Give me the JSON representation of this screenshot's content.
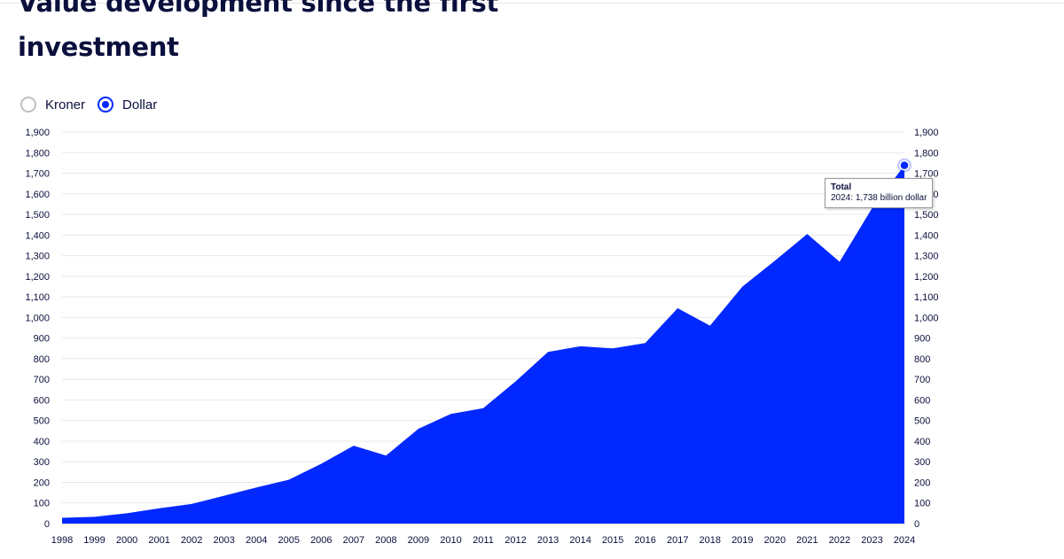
{
  "page": {
    "title": "Value development since the first investment"
  },
  "currency_toggle": {
    "options": [
      {
        "label": "Kroner",
        "selected": false
      },
      {
        "label": "Dollar",
        "selected": true
      }
    ]
  },
  "tooltip": {
    "series": "Total",
    "year": "2024",
    "value_text": "1,738 billion dollar"
  },
  "colors": {
    "area": "#0028ff",
    "title": "#0a0f3c"
  },
  "chart_data": {
    "type": "area",
    "title": "Value development since the first investment",
    "x": [
      1998,
      1999,
      2000,
      2001,
      2002,
      2003,
      2004,
      2005,
      2006,
      2007,
      2008,
      2009,
      2010,
      2011,
      2012,
      2013,
      2014,
      2015,
      2016,
      2017,
      2018,
      2019,
      2020,
      2021,
      2022,
      2023,
      2024
    ],
    "series": [
      {
        "name": "Total",
        "values": [
          28,
          33,
          50,
          74,
          95,
          135,
          175,
          213,
          290,
          378,
          330,
          460,
          532,
          560,
          690,
          833,
          860,
          850,
          876,
          1045,
          960,
          1150,
          1275,
          1405,
          1270,
          1530,
          1738
        ]
      }
    ],
    "ylim": [
      0,
      1900
    ],
    "yticks": [
      0,
      100,
      200,
      300,
      400,
      500,
      600,
      700,
      800,
      900,
      1000,
      1100,
      1200,
      1300,
      1400,
      1500,
      1600,
      1700,
      1800,
      1900
    ],
    "yticks_labels": [
      "0",
      "100",
      "200",
      "300",
      "400",
      "500",
      "600",
      "700",
      "800",
      "900",
      "1,000",
      "1,100",
      "1,200",
      "1,300",
      "1,400",
      "1,500",
      "1,600",
      "1,700",
      "1,800",
      "1,900"
    ],
    "xlabel": "",
    "ylabel": "",
    "grid": true,
    "legend": "none",
    "y_axis_sides": "both",
    "highlighted_point": {
      "x": 2024,
      "y": 1738
    }
  }
}
